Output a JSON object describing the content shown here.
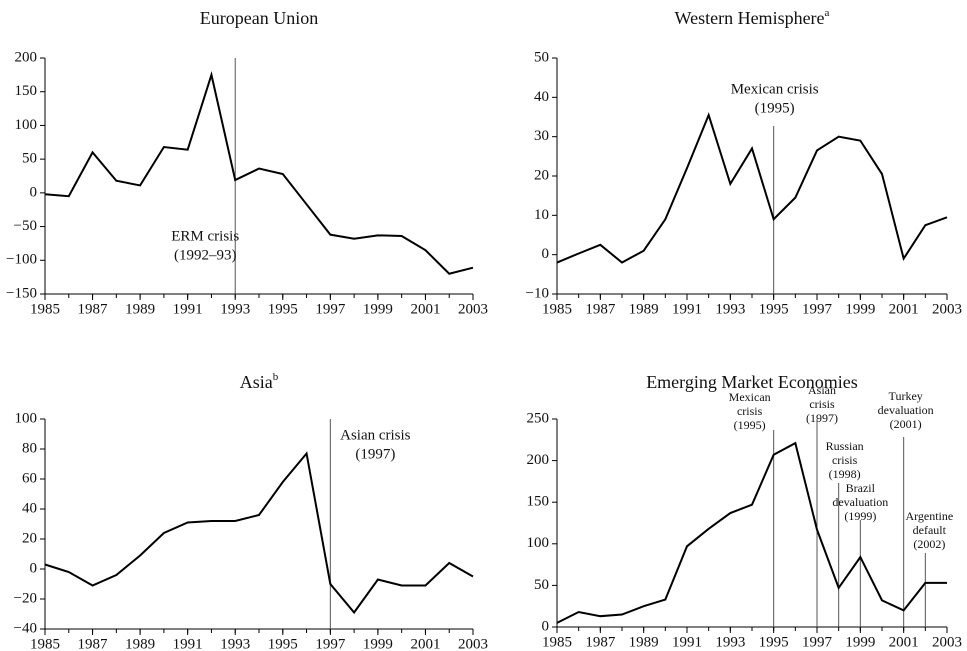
{
  "chart_data": [
    {
      "type": "line",
      "title": "European Union",
      "color": "#000000",
      "x": [
        1985,
        1986,
        1987,
        1988,
        1989,
        1990,
        1991,
        1992,
        1993,
        1994,
        1995,
        1996,
        1997,
        1998,
        1999,
        2000,
        2001,
        2002,
        2003
      ],
      "values": [
        -2,
        -5,
        60,
        18,
        11,
        68,
        64,
        175,
        19,
        36,
        28,
        -17,
        -62,
        -68,
        -63,
        -64,
        -85,
        -120,
        -111
      ],
      "xlim": [
        1985,
        2003
      ],
      "xticks": [
        1985,
        1987,
        1989,
        1991,
        1993,
        1995,
        1997,
        1999,
        2001,
        2003
      ],
      "ylim": [
        -150,
        200
      ],
      "yticks": [
        {
          "value": -150,
          "label": "−150"
        },
        {
          "value": -100,
          "label": "−100"
        },
        {
          "value": -50,
          "label": "−50"
        },
        0,
        50,
        100,
        150,
        200
      ],
      "annotations": [
        {
          "x": 1993,
          "text": [
            "ERM crisis",
            "(1992–93)"
          ]
        }
      ]
    },
    {
      "type": "line",
      "title": "Western Hemisphere",
      "title_note": "a",
      "color": "#000000",
      "x": [
        1985,
        1986,
        1987,
        1988,
        1989,
        1990,
        1991,
        1992,
        1993,
        1994,
        1995,
        1996,
        1997,
        1998,
        1999,
        2000,
        2001,
        2002,
        2003
      ],
      "values": [
        -2,
        0.3,
        2.5,
        -2,
        1,
        9,
        22,
        35.5,
        18,
        27,
        9,
        14.5,
        26.5,
        30,
        29,
        20.5,
        -1,
        7.5,
        9.5
      ],
      "xlim": [
        1985,
        2003
      ],
      "xticks": [
        1985,
        1987,
        1989,
        1991,
        1993,
        1995,
        1997,
        1999,
        2001,
        2003
      ],
      "ylim": [
        -10,
        50
      ],
      "yticks": [
        {
          "value": -10,
          "label": "−10"
        },
        0,
        10,
        20,
        30,
        40,
        50
      ],
      "annotations": [
        {
          "x": 1995,
          "text": [
            "Mexican crisis",
            "(1995)"
          ]
        }
      ]
    },
    {
      "type": "line",
      "title": "Asia",
      "title_note": "b",
      "color": "#000000",
      "x": [
        1985,
        1986,
        1987,
        1988,
        1989,
        1990,
        1991,
        1992,
        1993,
        1994,
        1995,
        1996,
        1997,
        1998,
        1999,
        2000,
        2001,
        2002,
        2003
      ],
      "values": [
        3,
        -2,
        -11,
        -4,
        9,
        24,
        31,
        32,
        32,
        36,
        58,
        77,
        -10,
        -29,
        -7,
        -11,
        -11,
        4,
        -5
      ],
      "xlim": [
        1985,
        2003
      ],
      "xticks": [
        1985,
        1987,
        1989,
        1991,
        1993,
        1995,
        1997,
        1999,
        2001,
        2003
      ],
      "ylim": [
        -40,
        100
      ],
      "yticks": [
        {
          "value": -40,
          "label": "−40"
        },
        {
          "value": -20,
          "label": "−20"
        },
        0,
        20,
        40,
        60,
        80,
        100
      ],
      "annotations": [
        {
          "x": 1997,
          "text": [
            "Asian crisis",
            "(1997)"
          ]
        }
      ]
    },
    {
      "type": "line",
      "title": "Emerging Market Economies",
      "color": "#000000",
      "x": [
        1985,
        1986,
        1987,
        1988,
        1989,
        1990,
        1991,
        1992,
        1993,
        1994,
        1995,
        1996,
        1997,
        1998,
        1999,
        2000,
        2001,
        2002,
        2003
      ],
      "values": [
        5,
        18,
        13,
        15,
        25,
        33,
        97,
        118,
        137,
        147,
        207,
        221,
        117,
        47,
        84,
        32,
        20,
        53,
        53
      ],
      "xlim": [
        1985,
        2003
      ],
      "xticks": [
        1985,
        1987,
        1989,
        1991,
        1993,
        1995,
        1997,
        1999,
        2001,
        2003
      ],
      "ylim": [
        0,
        250
      ],
      "yticks": [
        0,
        50,
        100,
        150,
        200,
        250
      ],
      "annotations": [
        {
          "x": 1995,
          "text": [
            "Mexican",
            "crisis",
            "(1995)"
          ]
        },
        {
          "x": 1997,
          "text": [
            "Asian",
            "crisis",
            "(1997)"
          ]
        },
        {
          "x": 1998,
          "text": [
            "Russian",
            "crisis",
            "(1998)"
          ]
        },
        {
          "x": 1999,
          "text": [
            "Brazil",
            "devaluation",
            "(1999)"
          ]
        },
        {
          "x": 2001,
          "text": [
            "Turkey",
            "devaluation",
            "(2001)"
          ]
        },
        {
          "x": 2002,
          "text": [
            "Argentine",
            "default",
            "(2002)"
          ]
        }
      ]
    }
  ]
}
